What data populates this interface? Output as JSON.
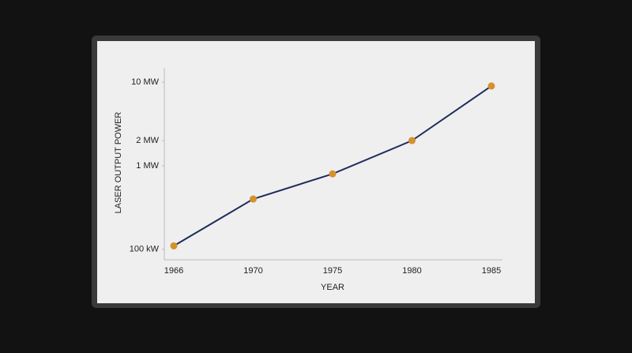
{
  "chart_data": {
    "type": "line",
    "x_label": "YEAR",
    "y_label": "LASER OUTPUT POWER",
    "categories": [
      "1966",
      "1970",
      "1975",
      "1980",
      "1985"
    ],
    "series": [
      {
        "values": [
          110000,
          400000,
          800000,
          2000000,
          9000000
        ],
        "color": "#1e2d5c",
        "marker_color": "#d4912c"
      }
    ],
    "log_y": true,
    "ylim": [
      80000,
      13000000
    ],
    "yticks": [
      {
        "value": 100000,
        "label": "100 kW"
      },
      {
        "value": 1000000,
        "label": "1 MW"
      },
      {
        "value": 2000000,
        "label": "2 MW"
      },
      {
        "value": 10000000,
        "label": "10 MW"
      }
    ]
  }
}
